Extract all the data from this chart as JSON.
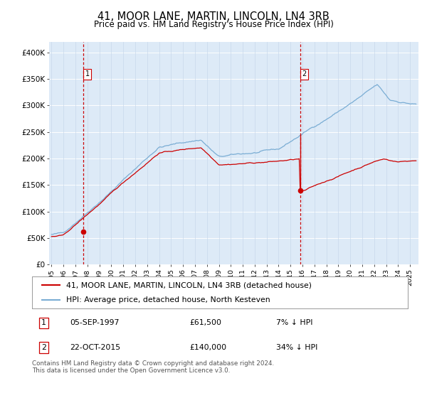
{
  "title": "41, MOOR LANE, MARTIN, LINCOLN, LN4 3RB",
  "subtitle": "Price paid vs. HM Land Registry's House Price Index (HPI)",
  "title_fontsize": 10.5,
  "subtitle_fontsize": 8.5,
  "bg_color": "#ddeaf7",
  "grid_color": "#c8d8eb",
  "hpi_color": "#7aadd4",
  "price_color": "#cc0000",
  "sale1_date_year": 1997.68,
  "sale1_price": 61500,
  "sale2_date_year": 2015.8,
  "sale2_price": 140000,
  "ylim": [
    0,
    420000
  ],
  "xlim_start": 1994.8,
  "xlim_end": 2025.7,
  "ylabel_ticks": [
    0,
    50000,
    100000,
    150000,
    200000,
    250000,
    300000,
    350000,
    400000
  ],
  "xticks": [
    1995,
    1996,
    1997,
    1998,
    1999,
    2000,
    2001,
    2002,
    2003,
    2004,
    2005,
    2006,
    2007,
    2008,
    2009,
    2010,
    2011,
    2012,
    2013,
    2014,
    2015,
    2016,
    2017,
    2018,
    2019,
    2020,
    2021,
    2022,
    2023,
    2024,
    2025
  ],
  "legend1_label": "41, MOOR LANE, MARTIN, LINCOLN, LN4 3RB (detached house)",
  "legend2_label": "HPI: Average price, detached house, North Kesteven",
  "note1_date": "05-SEP-1997",
  "note1_price": "£61,500",
  "note1_pct": "7% ↓ HPI",
  "note2_date": "22-OCT-2015",
  "note2_price": "£140,000",
  "note2_pct": "34% ↓ HPI",
  "footer": "Contains HM Land Registry data © Crown copyright and database right 2024.\nThis data is licensed under the Open Government Licence v3.0."
}
